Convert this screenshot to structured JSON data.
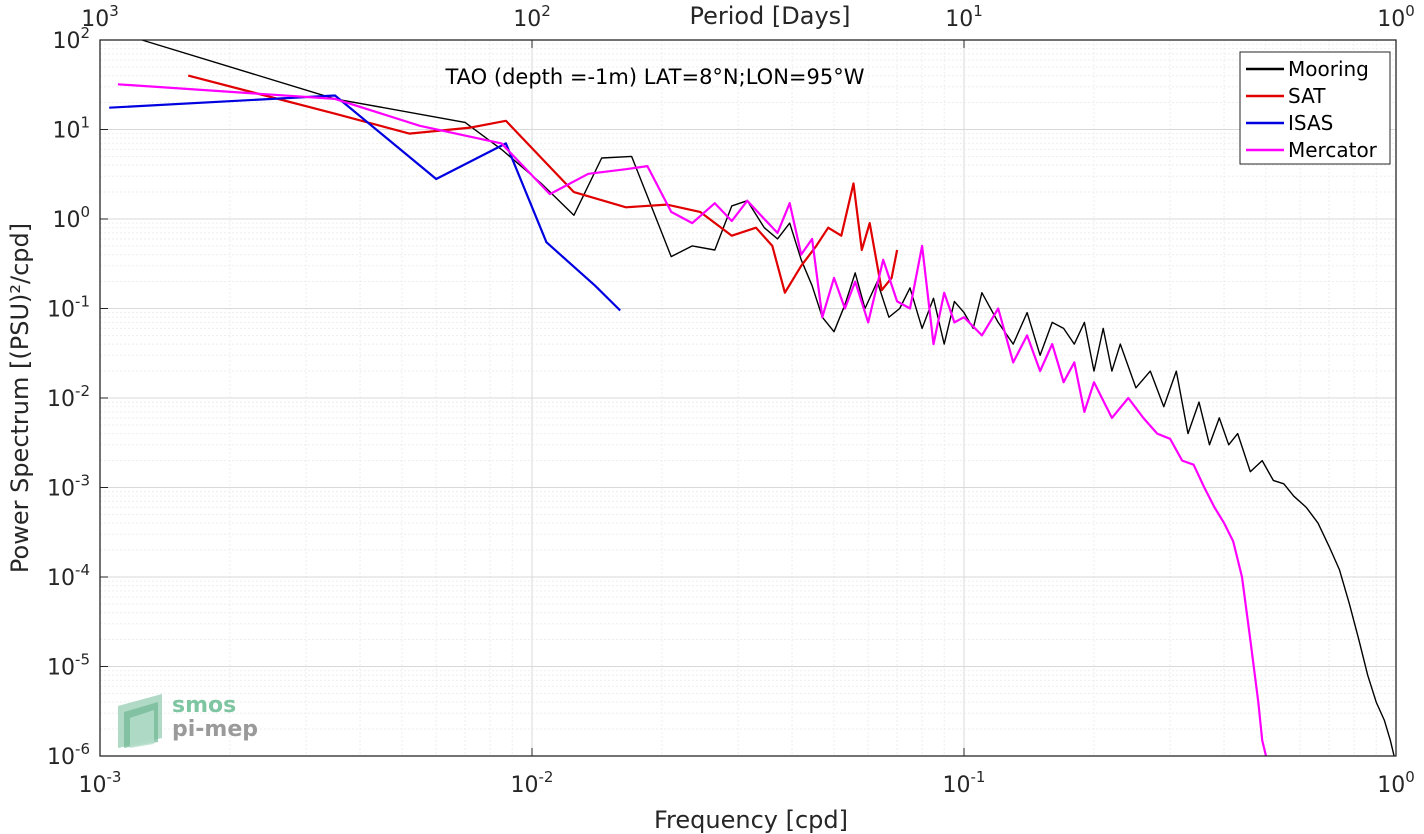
{
  "chart_data": {
    "type": "line",
    "title": "TAO (depth =-1m) LAT=8°N;LON=95°W",
    "xlabel": "Frequency [cpd]",
    "ylabel": "Power Spectrum [(PSU)²/cpd]",
    "top_axis_label": "Period [Days]",
    "x_scale": "log",
    "y_scale": "log",
    "xlim": [
      0.001,
      1
    ],
    "ylim": [
      1e-06,
      100
    ],
    "grid": true,
    "legend_position": "top-right",
    "x_ticks": [
      "10-3",
      "10-2",
      "10-1",
      "100"
    ],
    "y_ticks": [
      "10-6",
      "10-5",
      "10-4",
      "10-3",
      "10-2",
      "10-1",
      "100",
      "101",
      "102"
    ],
    "y_tick_labels": [
      "10-6",
      "10-5",
      "10-4",
      "10-3",
      "10-2",
      "10-1",
      "100",
      "101",
      "102"
    ],
    "top_ticks": [
      "103",
      "102",
      "101",
      "100"
    ],
    "series": [
      {
        "name": "Mooring",
        "color": "#000000",
        "x": [
          0.00125,
          0.0035,
          0.007,
          0.0085,
          0.0105,
          0.0125,
          0.0145,
          0.017,
          0.0185,
          0.021,
          0.0235,
          0.0265,
          0.029,
          0.0315,
          0.0345,
          0.037,
          0.0395,
          0.042,
          0.0445,
          0.047,
          0.05,
          0.053,
          0.056,
          0.059,
          0.063,
          0.067,
          0.071,
          0.075,
          0.08,
          0.085,
          0.09,
          0.095,
          0.1,
          0.105,
          0.11,
          0.12,
          0.13,
          0.14,
          0.15,
          0.16,
          0.17,
          0.18,
          0.19,
          0.2,
          0.21,
          0.22,
          0.23,
          0.25,
          0.27,
          0.29,
          0.31,
          0.33,
          0.35,
          0.37,
          0.39,
          0.41,
          0.43,
          0.46,
          0.49,
          0.52,
          0.55,
          0.58,
          0.62,
          0.66,
          0.7,
          0.74,
          0.78,
          0.82,
          0.86,
          0.9,
          0.94,
          0.97,
          0.99
        ],
        "y": [
          100,
          22,
          12,
          6,
          2.5,
          1.1,
          4.8,
          5,
          1.8,
          0.38,
          0.5,
          0.45,
          1.4,
          1.6,
          0.8,
          0.6,
          0.9,
          0.35,
          0.18,
          0.08,
          0.055,
          0.11,
          0.25,
          0.1,
          0.2,
          0.08,
          0.1,
          0.17,
          0.06,
          0.13,
          0.04,
          0.12,
          0.09,
          0.06,
          0.15,
          0.07,
          0.04,
          0.09,
          0.03,
          0.07,
          0.06,
          0.04,
          0.07,
          0.02,
          0.06,
          0.02,
          0.04,
          0.013,
          0.02,
          0.008,
          0.02,
          0.004,
          0.009,
          0.003,
          0.006,
          0.003,
          0.004,
          0.0015,
          0.002,
          0.0012,
          0.0011,
          0.0008,
          0.0006,
          0.0004,
          0.00022,
          0.00012,
          5e-05,
          2e-05,
          8e-06,
          4e-06,
          2.5e-06,
          1.5e-06,
          1e-06
        ]
      },
      {
        "name": "SAT",
        "color": "#e00000",
        "x": [
          0.0016,
          0.0035,
          0.0052,
          0.0072,
          0.0087,
          0.0125,
          0.0165,
          0.0205,
          0.0245,
          0.029,
          0.033,
          0.036,
          0.0385,
          0.042,
          0.0455,
          0.0485,
          0.052,
          0.0555,
          0.058,
          0.0605,
          0.0645,
          0.068,
          0.07
        ],
        "y": [
          40,
          15,
          9,
          10.5,
          12.5,
          2,
          1.35,
          1.45,
          1.2,
          0.65,
          0.8,
          0.5,
          0.15,
          0.3,
          0.5,
          0.8,
          0.65,
          2.5,
          0.45,
          0.9,
          0.16,
          0.22,
          0.45
        ]
      },
      {
        "name": "ISAS",
        "color": "#0000e0",
        "x": [
          0.00105,
          0.0035,
          0.006,
          0.0087,
          0.0108,
          0.014,
          0.016
        ],
        "y": [
          17.5,
          24,
          2.8,
          7,
          0.55,
          0.18,
          0.095
        ]
      },
      {
        "name": "Mercator",
        "color": "#ff00ff",
        "x": [
          0.0011,
          0.0035,
          0.0055,
          0.0085,
          0.011,
          0.0135,
          0.0165,
          0.0185,
          0.021,
          0.0235,
          0.0265,
          0.029,
          0.0315,
          0.0345,
          0.037,
          0.0395,
          0.042,
          0.0445,
          0.047,
          0.05,
          0.053,
          0.056,
          0.06,
          0.065,
          0.07,
          0.075,
          0.08,
          0.085,
          0.09,
          0.095,
          0.1,
          0.11,
          0.12,
          0.13,
          0.14,
          0.15,
          0.16,
          0.17,
          0.18,
          0.19,
          0.2,
          0.22,
          0.24,
          0.26,
          0.28,
          0.3,
          0.32,
          0.34,
          0.36,
          0.38,
          0.4,
          0.42,
          0.44,
          0.46,
          0.48,
          0.49,
          0.5
        ],
        "y": [
          32,
          22,
          11,
          7,
          1.9,
          3.2,
          3.6,
          3.9,
          1.2,
          0.9,
          1.5,
          0.95,
          1.6,
          1,
          0.7,
          1.5,
          0.4,
          0.6,
          0.08,
          0.22,
          0.1,
          0.2,
          0.07,
          0.35,
          0.12,
          0.1,
          0.5,
          0.04,
          0.15,
          0.07,
          0.08,
          0.05,
          0.1,
          0.025,
          0.05,
          0.02,
          0.04,
          0.015,
          0.025,
          0.007,
          0.015,
          0.006,
          0.01,
          0.006,
          0.004,
          0.0035,
          0.002,
          0.0018,
          0.001,
          0.0006,
          0.0004,
          0.00025,
          0.0001,
          2e-05,
          4e-06,
          1.5e-06,
          1e-06
        ]
      }
    ]
  },
  "logo": {
    "line1": "smos",
    "line2": "pi-mep"
  }
}
